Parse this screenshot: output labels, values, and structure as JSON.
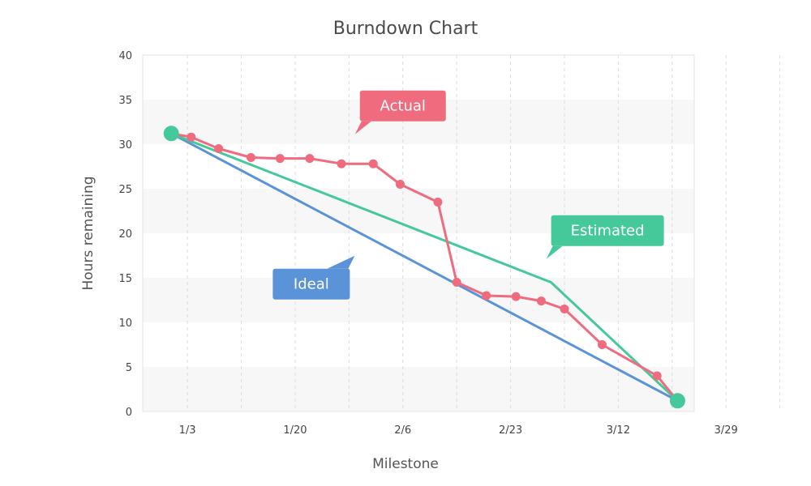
{
  "chart_data": {
    "type": "line",
    "title": "Burndown Chart",
    "xlabel": "Milestone",
    "ylabel": "Hours remaining",
    "ylim": [
      0,
      40
    ],
    "y_ticks": [
      0,
      5,
      10,
      15,
      20,
      25,
      30,
      35,
      40
    ],
    "x_ticks": [
      "1/3",
      "1/20",
      "2/6",
      "2/23",
      "3/12",
      "3/29"
    ],
    "x_range": [
      -0.83,
      9.41
    ],
    "grid": "horizontal bands and dashed vertical lines",
    "colors": {
      "actual": "#f06b7e",
      "estimated": "#45c99a",
      "ideal": "#5b93d9",
      "endpoints": "#45c99a",
      "band": "#f7f7f7",
      "vgrid": "#dddddd"
    },
    "series": [
      {
        "name": "Actual",
        "key": "actual",
        "x": [
          -0.3,
          0.07,
          0.58,
          1.18,
          1.72,
          2.27,
          2.86,
          3.45,
          3.95,
          4.65,
          5.0,
          5.55,
          6.1,
          6.57,
          7.0,
          7.7,
          8.72,
          9.1
        ],
        "values": [
          31.2,
          30.8,
          29.5,
          28.5,
          28.4,
          28.4,
          27.8,
          27.8,
          25.5,
          23.5,
          14.5,
          13.0,
          12.9,
          12.4,
          11.5,
          7.5,
          4.0,
          1.2
        ]
      },
      {
        "name": "Estimated",
        "key": "estimated",
        "x": [
          -0.3,
          6.75,
          9.1
        ],
        "values": [
          31.2,
          14.5,
          1.2
        ]
      },
      {
        "name": "Ideal",
        "key": "ideal",
        "x": [
          -0.3,
          9.1
        ],
        "values": [
          31.2,
          1.2
        ]
      }
    ],
    "endpoints": {
      "x": [
        -0.3,
        9.1
      ],
      "values": [
        31.2,
        1.2
      ]
    },
    "callouts": [
      {
        "label": "Actual",
        "key": "actual",
        "x": 4.0,
        "y": 34.3,
        "tail": "bottom-left"
      },
      {
        "label": "Estimated",
        "key": "estimated",
        "x": 7.8,
        "y": 20.3,
        "tail": "bottom-left"
      },
      {
        "label": "Ideal",
        "key": "ideal",
        "x": 2.3,
        "y": 14.3,
        "tail": "top-right"
      }
    ]
  }
}
